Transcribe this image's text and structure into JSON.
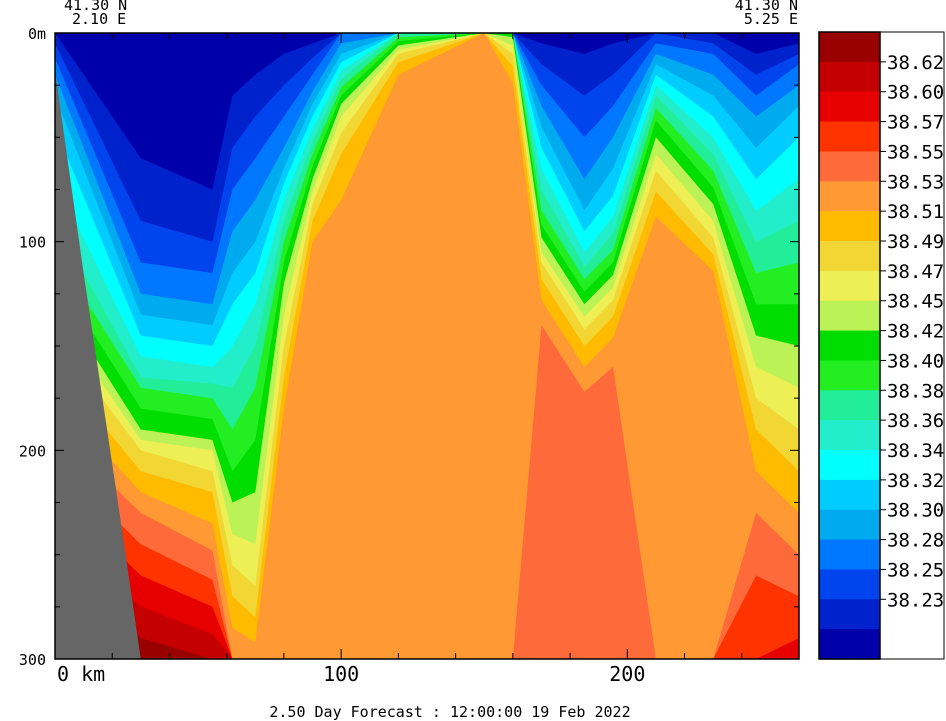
{
  "chart_data": {
    "type": "heatmap",
    "title": "",
    "caption": "2.50 Day Forecast : 12:00:00  19 Feb 2022",
    "corner_left": {
      "lat": "41.30 N",
      "lon": "2.10 E"
    },
    "corner_right": {
      "lat": "41.30 N",
      "lon": "5.25 E"
    },
    "xlabel": "km",
    "ylabel": "m",
    "x_range": [
      0,
      260
    ],
    "y_range": [
      0,
      300
    ],
    "x_ticks": [
      {
        "value": 0,
        "label": "0 km"
      },
      {
        "value": 100,
        "label": "100"
      },
      {
        "value": 200,
        "label": "200"
      }
    ],
    "y_ticks": [
      {
        "value": 0,
        "label": "0m"
      },
      {
        "value": 100,
        "label": "100"
      },
      {
        "value": 200,
        "label": "200"
      },
      {
        "value": 300,
        "label": "300"
      }
    ],
    "colorbar_labels": [
      "38.62",
      "38.60",
      "38.57",
      "38.55",
      "38.53",
      "38.51",
      "38.49",
      "38.47",
      "38.45",
      "38.42",
      "38.40",
      "38.38",
      "38.36",
      "38.34",
      "38.32",
      "38.30",
      "38.28",
      "38.25",
      "38.23"
    ],
    "colorbar_colors": [
      "#990000",
      "#c40000",
      "#e60000",
      "#ff3300",
      "#ff6a3a",
      "#ff9933",
      "#ffbb00",
      "#f2d633",
      "#eeee55",
      "#bbf255",
      "#00dd00",
      "#22ee22",
      "#22ee99",
      "#22eecc",
      "#00ffff",
      "#00ccff",
      "#00aaee",
      "#0077ff",
      "#0044ee",
      "#0022cc",
      "#0000aa"
    ],
    "land_color": "#666666",
    "bottom_depth_profile": [
      {
        "x": 0,
        "depth": 18
      },
      {
        "x": 10,
        "depth": 115
      },
      {
        "x": 16,
        "depth": 170
      },
      {
        "x": 22,
        "depth": 225
      },
      {
        "x": 30,
        "depth": 300
      }
    ],
    "field_sketch": {
      "isoline_depths_by_x": [
        {
          "x": 0,
          "d": [
            0,
            5,
            12,
            20,
            30,
            45,
            70,
            90,
            105,
            115,
            125,
            135,
            145,
            160,
            175,
            190,
            205,
            220,
            240,
            255
          ]
        },
        {
          "x": 30,
          "d": [
            60,
            90,
            110,
            125,
            135,
            145,
            155,
            165,
            170,
            180,
            190,
            195,
            200,
            210,
            220,
            230,
            245,
            260,
            275,
            290
          ]
        },
        {
          "x": 55,
          "d": [
            75,
            100,
            115,
            130,
            140,
            150,
            160,
            168,
            175,
            185,
            195,
            200,
            210,
            220,
            235,
            248,
            262,
            275,
            288,
            300
          ]
        },
        {
          "x": 62,
          "d": [
            30,
            55,
            75,
            95,
            115,
            130,
            150,
            170,
            190,
            210,
            225,
            240,
            255,
            270,
            285,
            300,
            300,
            300,
            300,
            300
          ]
        },
        {
          "x": 70,
          "d": [
            20,
            40,
            60,
            80,
            100,
            115,
            130,
            150,
            170,
            195,
            220,
            245,
            265,
            280,
            292,
            300,
            300,
            300,
            300,
            300
          ]
        },
        {
          "x": 80,
          "d": [
            10,
            25,
            40,
            55,
            65,
            72,
            80,
            90,
            100,
            110,
            120,
            135,
            150,
            165,
            180,
            300,
            300,
            300,
            300,
            300
          ]
        },
        {
          "x": 90,
          "d": [
            5,
            12,
            20,
            28,
            34,
            40,
            46,
            52,
            58,
            64,
            70,
            76,
            82,
            90,
            100,
            300,
            300,
            300,
            300,
            300
          ]
        },
        {
          "x": 100,
          "d": [
            0,
            0,
            0,
            5,
            10,
            14,
            18,
            22,
            26,
            30,
            34,
            40,
            48,
            58,
            80,
            300,
            300,
            300,
            300,
            300
          ]
        },
        {
          "x": 120,
          "d": [
            0,
            0,
            0,
            0,
            0,
            0,
            0,
            0,
            2,
            4,
            6,
            8,
            10,
            14,
            20,
            300,
            300,
            300,
            300,
            300
          ]
        },
        {
          "x": 150,
          "d": [
            0,
            0,
            0,
            0,
            0,
            0,
            0,
            0,
            0,
            0,
            0,
            0,
            0,
            0,
            0,
            300,
            300,
            300,
            300,
            300
          ]
        },
        {
          "x": 160,
          "d": [
            0,
            0,
            0,
            0,
            0,
            0,
            0,
            0,
            0,
            0,
            2,
            6,
            10,
            16,
            24,
            300,
            300,
            300,
            300,
            300
          ]
        },
        {
          "x": 170,
          "d": [
            5,
            15,
            25,
            35,
            45,
            55,
            65,
            75,
            85,
            92,
            98,
            105,
            110,
            118,
            128,
            140,
            300,
            300,
            300,
            300
          ]
        },
        {
          "x": 185,
          "d": [
            10,
            30,
            50,
            70,
            85,
            95,
            105,
            112,
            118,
            124,
            130,
            136,
            142,
            150,
            160,
            172,
            300,
            300,
            300,
            300
          ]
        },
        {
          "x": 195,
          "d": [
            5,
            20,
            35,
            50,
            65,
            78,
            88,
            96,
            104,
            110,
            116,
            122,
            128,
            136,
            146,
            160,
            300,
            300,
            300,
            300
          ]
        },
        {
          "x": 210,
          "d": [
            0,
            0,
            5,
            10,
            15,
            20,
            25,
            30,
            36,
            42,
            50,
            58,
            66,
            76,
            88,
            300,
            300,
            300,
            300,
            300
          ]
        },
        {
          "x": 230,
          "d": [
            0,
            5,
            10,
            20,
            30,
            40,
            50,
            58,
            66,
            74,
            82,
            90,
            98,
            106,
            114,
            300,
            300,
            300,
            300,
            300
          ]
        },
        {
          "x": 245,
          "d": [
            10,
            20,
            30,
            40,
            55,
            70,
            85,
            100,
            115,
            130,
            145,
            160,
            175,
            190,
            210,
            230,
            260,
            300,
            300,
            300
          ]
        },
        {
          "x": 260,
          "d": [
            5,
            10,
            15,
            25,
            35,
            50,
            70,
            90,
            110,
            130,
            150,
            170,
            190,
            210,
            230,
            250,
            270,
            290,
            300,
            300
          ]
        }
      ]
    }
  }
}
